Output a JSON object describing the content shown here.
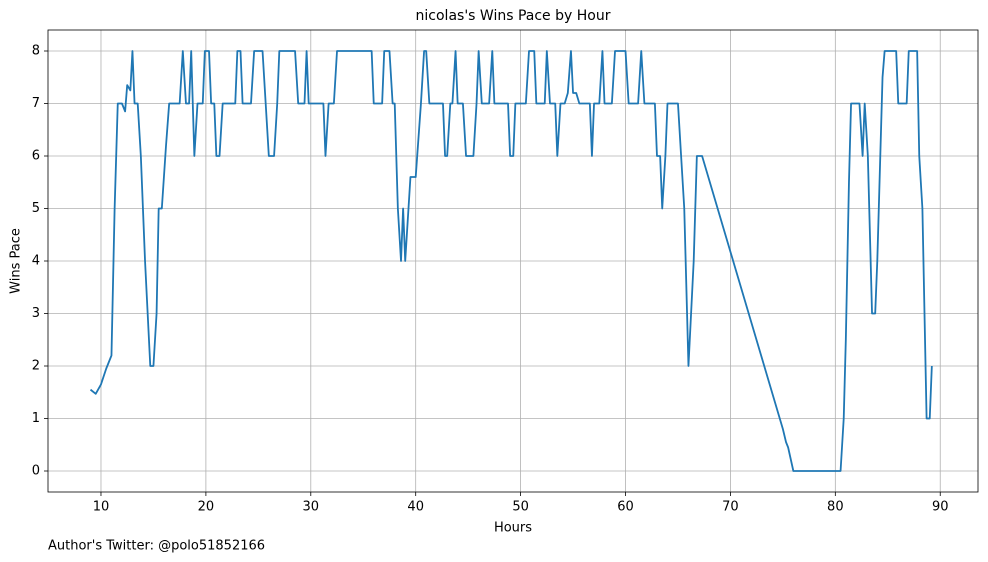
{
  "chart_data": {
    "type": "line",
    "title": "nicolas's Wins Pace by Hour",
    "xlabel": "Hours",
    "ylabel": "Wins Pace",
    "caption": "Author's Twitter: @polo51852166",
    "xlim": [
      4.95,
      93.6
    ],
    "ylim": [
      -0.4,
      8.4
    ],
    "xticks": [
      10,
      20,
      30,
      40,
      50,
      60,
      70,
      80,
      90
    ],
    "yticks": [
      0,
      1,
      2,
      3,
      4,
      5,
      6,
      7,
      8
    ],
    "grid": true,
    "x": [
      9.0,
      9.5,
      10.0,
      10.5,
      11.0,
      11.3,
      11.6,
      12.0,
      12.3,
      12.5,
      12.8,
      13.0,
      13.2,
      13.5,
      13.8,
      14.2,
      14.7,
      15.0,
      15.3,
      15.5,
      15.8,
      16.2,
      16.5,
      17.5,
      17.8,
      18.1,
      18.4,
      18.6,
      18.9,
      19.2,
      19.7,
      19.9,
      20.3,
      20.5,
      20.8,
      21.0,
      21.3,
      21.6,
      22.8,
      23.0,
      23.3,
      23.5,
      24.3,
      24.6,
      25.4,
      25.7,
      26.0,
      26.5,
      26.8,
      27.0,
      28.5,
      28.8,
      29.4,
      29.6,
      29.8,
      31.2,
      31.4,
      31.7,
      32.2,
      32.5,
      35.8,
      36.0,
      36.8,
      37.0,
      37.5,
      37.8,
      38.0,
      38.3,
      38.6,
      38.8,
      39.0,
      39.5,
      40.0,
      40.5,
      40.8,
      41.0,
      41.3,
      42.6,
      42.8,
      43.0,
      43.3,
      43.5,
      43.8,
      44.0,
      44.5,
      44.8,
      45.5,
      45.8,
      46.0,
      46.3,
      47.0,
      47.3,
      47.5,
      48.8,
      49.0,
      49.3,
      49.5,
      50.5,
      50.8,
      51.3,
      51.5,
      52.3,
      52.5,
      52.8,
      53.3,
      53.5,
      53.8,
      54.2,
      54.5,
      54.8,
      55.0,
      55.3,
      55.6,
      56.6,
      56.8,
      57.0,
      57.5,
      57.8,
      58.0,
      58.7,
      59.0,
      60.0,
      60.3,
      61.2,
      61.5,
      61.8,
      62.8,
      63.0,
      63.3,
      63.5,
      63.8,
      64.0,
      65.0,
      65.3,
      65.6,
      66.0,
      66.5,
      66.8,
      67.3,
      75.0,
      75.3,
      75.5,
      76.0,
      80.5,
      80.8,
      81.0,
      81.3,
      81.5,
      82.3,
      82.6,
      82.8,
      83.1,
      83.5,
      83.8,
      84.0,
      84.5,
      84.7,
      85.8,
      86.0,
      86.8,
      87.0,
      87.8,
      88.0,
      88.3,
      88.7,
      89.0,
      89.2
    ],
    "series": [
      {
        "name": "Wins Pace",
        "color": "#1f77b4",
        "values": [
          1.55,
          1.47,
          1.65,
          1.95,
          2.2,
          5.0,
          7.0,
          7.0,
          6.85,
          7.35,
          7.25,
          8.0,
          7.0,
          7.0,
          6.0,
          4.0,
          2.0,
          2.0,
          3.0,
          5.0,
          5.0,
          6.2,
          7.0,
          7.0,
          8.0,
          7.0,
          7.0,
          8.0,
          6.0,
          7.0,
          7.0,
          8.0,
          8.0,
          7.0,
          7.0,
          6.0,
          6.0,
          7.0,
          7.0,
          8.0,
          8.0,
          7.0,
          7.0,
          8.0,
          8.0,
          7.0,
          6.0,
          6.0,
          7.0,
          8.0,
          8.0,
          7.0,
          7.0,
          8.0,
          7.0,
          7.0,
          6.0,
          7.0,
          7.0,
          8.0,
          8.0,
          7.0,
          7.0,
          8.0,
          8.0,
          7.0,
          7.0,
          5.0,
          4.0,
          5.0,
          4.0,
          5.6,
          5.6,
          7.0,
          8.0,
          8.0,
          7.0,
          7.0,
          6.0,
          6.0,
          7.0,
          7.0,
          8.0,
          7.0,
          7.0,
          6.0,
          6.0,
          7.0,
          8.0,
          7.0,
          7.0,
          8.0,
          7.0,
          7.0,
          6.0,
          6.0,
          7.0,
          7.0,
          8.0,
          8.0,
          7.0,
          7.0,
          8.0,
          7.0,
          7.0,
          6.0,
          7.0,
          7.0,
          7.2,
          8.0,
          7.2,
          7.2,
          7.0,
          7.0,
          6.0,
          7.0,
          7.0,
          8.0,
          7.0,
          7.0,
          8.0,
          8.0,
          7.0,
          7.0,
          8.0,
          7.0,
          7.0,
          6.0,
          6.0,
          5.0,
          6.0,
          7.0,
          7.0,
          6.0,
          5.0,
          2.0,
          4.0,
          6.0,
          6.0,
          0.8,
          0.55,
          0.45,
          0.0,
          0.0,
          1.0,
          2.5,
          5.5,
          7.0,
          7.0,
          6.0,
          7.0,
          6.0,
          3.0,
          3.0,
          4.0,
          7.5,
          8.0,
          8.0,
          7.0,
          7.0,
          8.0,
          8.0,
          6.0,
          5.0,
          1.0,
          1.0,
          2.0
        ]
      }
    ]
  }
}
